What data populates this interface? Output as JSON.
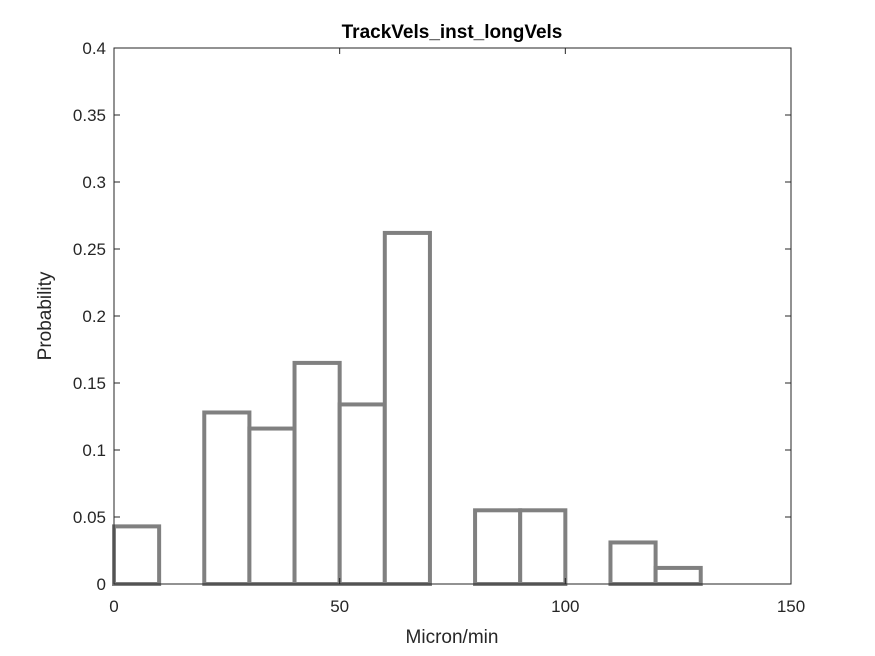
{
  "chart_data": {
    "type": "bar",
    "subtype": "histogram-outline",
    "title": "TrackVels_inst_longVels",
    "xlabel": "Micron/min",
    "ylabel": "Probability",
    "xlim": [
      0,
      150
    ],
    "ylim": [
      0,
      0.4
    ],
    "bin_edges": [
      0,
      10,
      20,
      30,
      40,
      50,
      60,
      70,
      80,
      90,
      100,
      110,
      120,
      130,
      140,
      150
    ],
    "values": [
      0.043,
      0.0,
      0.128,
      0.116,
      0.165,
      0.134,
      0.262,
      0.0,
      0.055,
      0.055,
      0.0,
      0.031,
      0.012,
      0.0,
      0.0
    ],
    "xticks": [
      0,
      50,
      100,
      150
    ],
    "xtick_labels": [
      "0",
      "50",
      "100",
      "150"
    ],
    "yticks": [
      0,
      0.05,
      0.1,
      0.15,
      0.2,
      0.25,
      0.3,
      0.35,
      0.4
    ],
    "ytick_labels": [
      "0",
      "0.05",
      "0.1",
      "0.15",
      "0.2",
      "0.25",
      "0.3",
      "0.35",
      "0.4"
    ],
    "grid": false,
    "bar_edge_color": "#808080",
    "bar_face_color": "#ffffff"
  }
}
